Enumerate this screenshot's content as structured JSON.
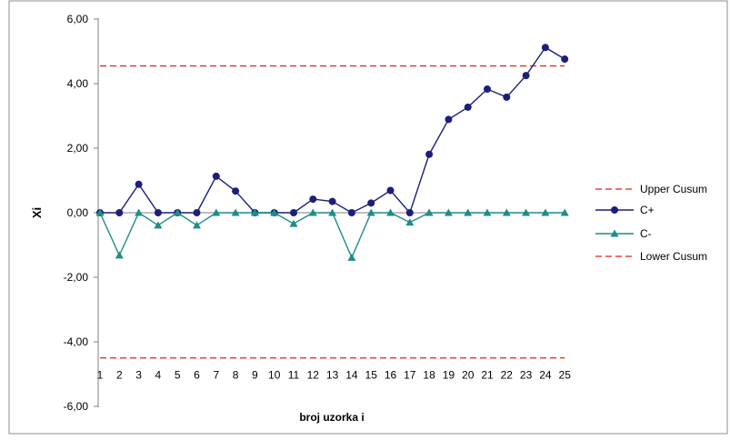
{
  "chart_data": {
    "type": "line",
    "title": "",
    "xlabel": "broj uzorka  i",
    "ylabel": "Xi",
    "ylim": [
      -6,
      6
    ],
    "y_ticks": [
      6,
      4,
      2,
      0,
      -2,
      -4,
      -6
    ],
    "y_tick_labels": [
      "6,00",
      "4,00",
      "2,00",
      "0,00",
      "-2,00",
      "-4,00",
      "-6,00"
    ],
    "x_tick_position": "at y = -5",
    "grid": false,
    "legend_position": "right",
    "categories": [
      "1",
      "2",
      "3",
      "4",
      "5",
      "6",
      "7",
      "8",
      "9",
      "10",
      "11",
      "12",
      "13",
      "14",
      "15",
      "16",
      "17",
      "18",
      "19",
      "20",
      "21",
      "22",
      "23",
      "24",
      "25"
    ],
    "series": [
      {
        "name": "Upper Cusum",
        "kind": "dashed-line",
        "color": "#e0221b",
        "values": [
          4.55,
          4.55,
          4.55,
          4.55,
          4.55,
          4.55,
          4.55,
          4.55,
          4.55,
          4.55,
          4.55,
          4.55,
          4.55,
          4.55,
          4.55,
          4.55,
          4.55,
          4.55,
          4.55,
          4.55,
          4.55,
          4.55,
          4.55,
          4.55,
          4.55
        ]
      },
      {
        "name": "C+",
        "kind": "line-circle",
        "color": "#1b1f7a",
        "values": [
          0,
          0,
          0.88,
          0,
          0,
          0,
          1.13,
          0.67,
          0,
          0,
          0,
          0.42,
          0.35,
          0,
          0.3,
          0.69,
          0,
          1.81,
          2.89,
          3.27,
          3.83,
          3.58,
          4.25,
          5.12,
          4.76
        ]
      },
      {
        "name": "C-",
        "kind": "line-triangle",
        "color": "#1f8c86",
        "values": [
          0,
          -1.32,
          0,
          -0.39,
          0,
          -0.39,
          0,
          0,
          0,
          0,
          -0.34,
          0,
          0,
          -1.39,
          0,
          0,
          -0.3,
          0,
          0,
          0,
          0,
          0,
          0,
          0,
          0
        ]
      },
      {
        "name": "Lower Cusum",
        "kind": "dashed-line",
        "color": "#e0221b",
        "values": [
          -4.5,
          -4.5,
          -4.5,
          -4.5,
          -4.5,
          -4.5,
          -4.5,
          -4.5,
          -4.5,
          -4.5,
          -4.5,
          -4.5,
          -4.5,
          -4.5,
          -4.5,
          -4.5,
          -4.5,
          -4.5,
          -4.5,
          -4.5,
          -4.5,
          -4.5,
          -4.5,
          -4.5,
          -4.5
        ]
      }
    ]
  }
}
